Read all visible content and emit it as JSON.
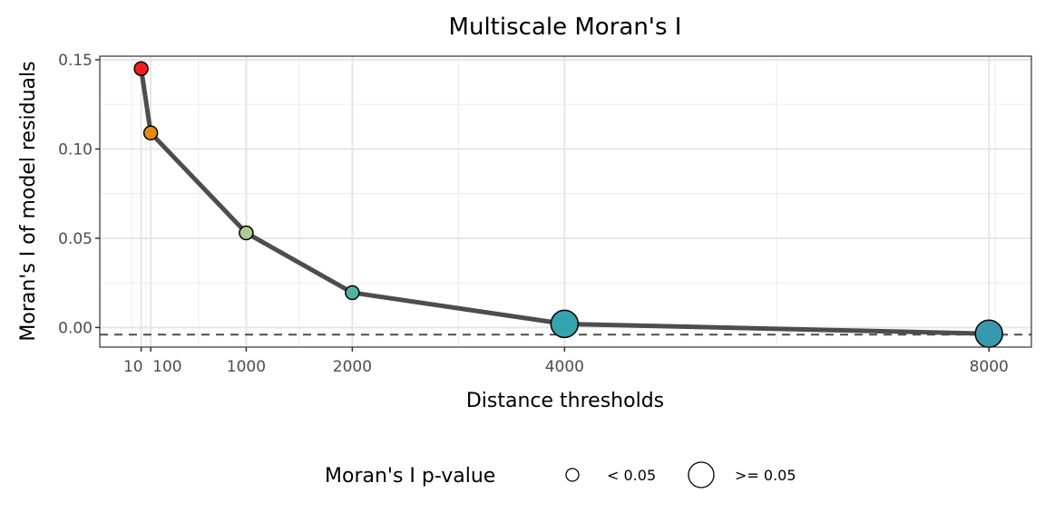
{
  "chart_data": {
    "type": "line",
    "title": "Multiscale Moran's I",
    "xlabel": "Distance thresholds",
    "ylabel": "Moran's I of model residuals",
    "x": [
      10,
      100,
      1000,
      2000,
      4000,
      8000
    ],
    "y": [
      0.145,
      0.109,
      0.053,
      0.0195,
      0.002,
      -0.0035
    ],
    "point_colors": [
      "#f91c1c",
      "#e68a0c",
      "#aec994",
      "#4fb3a0",
      "#33a3ae",
      "#3799af"
    ],
    "p_value_class": [
      "< 0.05",
      "< 0.05",
      "< 0.05",
      "< 0.05",
      ">= 0.05",
      ">= 0.05"
    ],
    "reference_line_y": -0.004,
    "xticks": [
      10,
      100,
      1000,
      2000,
      4000,
      8000
    ],
    "xtick_labels": [
      "10",
      "100",
      "1000",
      "2000",
      "4000",
      "8000"
    ],
    "yticks": [
      0.0,
      0.05,
      0.1,
      0.15
    ],
    "ytick_labels": [
      "0.00",
      "0.05",
      "0.10",
      "0.15"
    ],
    "xlim": [
      -380,
      8400
    ],
    "ylim": [
      -0.011,
      0.152
    ],
    "grid": true,
    "legend": {
      "title": "Moran's I p-value",
      "position": "bottom",
      "entries": [
        "< 0.05",
        ">= 0.05"
      ]
    },
    "line_color": "#4d4d4d"
  }
}
